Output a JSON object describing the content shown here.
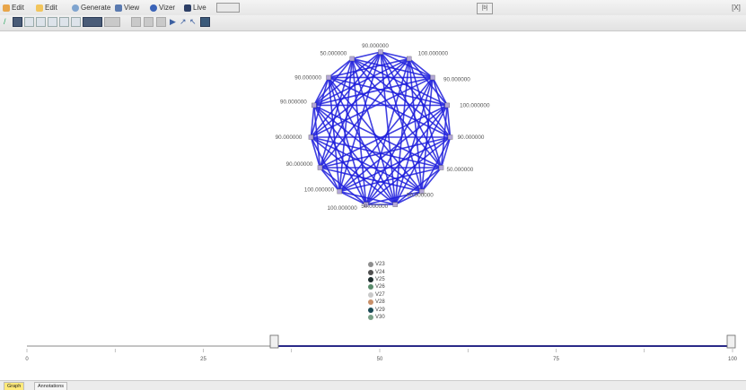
{
  "menubar": {
    "items": [
      {
        "label": "Edit",
        "color": "#e8a54a"
      },
      {
        "label": "Edit",
        "color": "#f2c55c"
      },
      {
        "label": "Generate",
        "color": "#7fa4cf"
      },
      {
        "label": "View",
        "color": "#5a7ab0"
      },
      {
        "label": "Vizer",
        "color": "#3a63b8"
      },
      {
        "label": "Live",
        "color": "#2d3f66"
      }
    ],
    "center_box": "[b]",
    "right_box": "[X]"
  },
  "graph": {
    "edge_color": "#1e1edc",
    "node_color": "#b3a6d8",
    "vertex_labels": [
      "90.000000",
      "100.000000",
      "90.000000",
      "100.000000",
      "90.000000",
      "50.000000",
      "50.000000",
      "50.000000",
      "100.000000",
      "100.000000",
      "90.000000",
      "90.000000",
      "90.000000",
      "90.000000",
      "50.000000"
    ]
  },
  "legend": [
    {
      "label": "V23",
      "color": "#8e8e8e"
    },
    {
      "label": "V24",
      "color": "#505050"
    },
    {
      "label": "V25",
      "color": "#1e2e2e"
    },
    {
      "label": "V26",
      "color": "#5a8c6c"
    },
    {
      "label": "V27",
      "color": "#c9c9c9"
    },
    {
      "label": "V28",
      "color": "#c8906a"
    },
    {
      "label": "V29",
      "color": "#1a4a55"
    },
    {
      "label": "V30",
      "color": "#7aa087"
    }
  ],
  "timeline": {
    "ticks": [
      "0",
      "25",
      "50",
      "75",
      "100"
    ],
    "accent": "#2a2a88"
  },
  "tabs": {
    "graph": "Graph",
    "annotations": "Annotations"
  }
}
